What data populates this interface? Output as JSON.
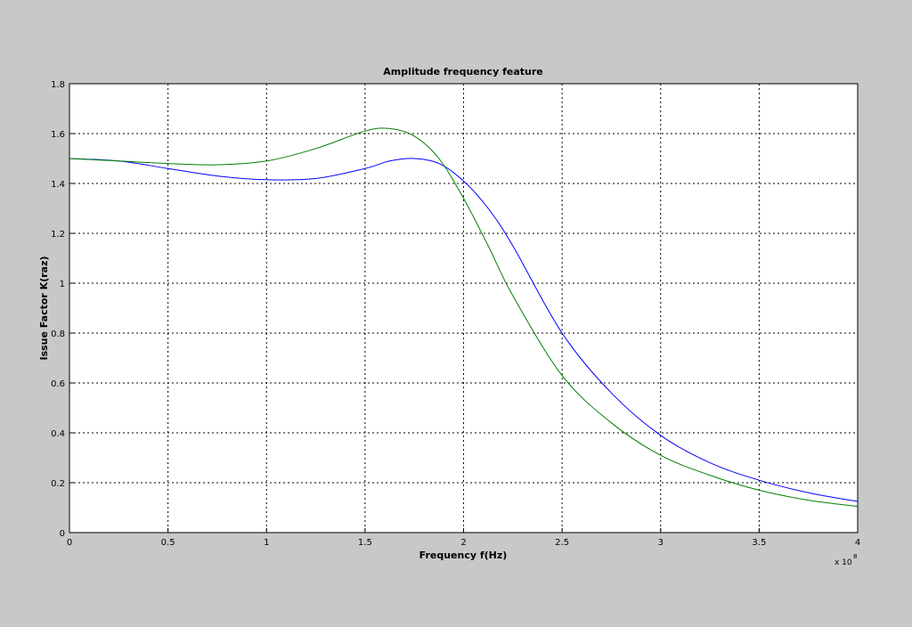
{
  "chart_data": {
    "type": "line",
    "title": "Amplitude frequency feature",
    "x_label": "Frequency f(Hz)",
    "y_label": "Issue Factor K(raz)",
    "x_multiplier": {
      "base": "x 10",
      "exponent": "8"
    },
    "x": [
      0,
      0.25,
      0.5,
      0.75,
      1,
      1.25,
      1.5,
      1.625,
      1.75,
      1.875,
      2,
      2.125,
      2.25,
      2.5,
      2.75,
      3,
      3.25,
      3.5,
      3.75,
      4
    ],
    "series": [
      {
        "color": "#0000ff",
        "values": [
          1.5,
          1.49,
          1.46,
          1.43,
          1.415,
          1.42,
          1.46,
          1.49,
          1.5,
          1.48,
          1.41,
          1.3,
          1.15,
          0.8,
          0.56,
          0.39,
          0.28,
          0.21,
          0.16,
          0.125
        ]
      },
      {
        "color": "#008000",
        "values": [
          1.5,
          1.49,
          1.48,
          1.475,
          1.49,
          1.54,
          1.61,
          1.62,
          1.59,
          1.5,
          1.34,
          1.15,
          0.95,
          0.63,
          0.44,
          0.31,
          0.23,
          0.17,
          0.13,
          0.105
        ]
      }
    ],
    "xlim": [
      0,
      4
    ],
    "xticks": [
      0,
      0.5,
      1,
      1.5,
      2,
      2.5,
      3,
      3.5,
      4
    ],
    "ylim": [
      0,
      1.8
    ],
    "yticks": [
      0,
      0.2,
      0.4,
      0.6,
      0.8,
      1,
      1.2,
      1.4,
      1.6,
      1.8
    ],
    "grid": true
  }
}
